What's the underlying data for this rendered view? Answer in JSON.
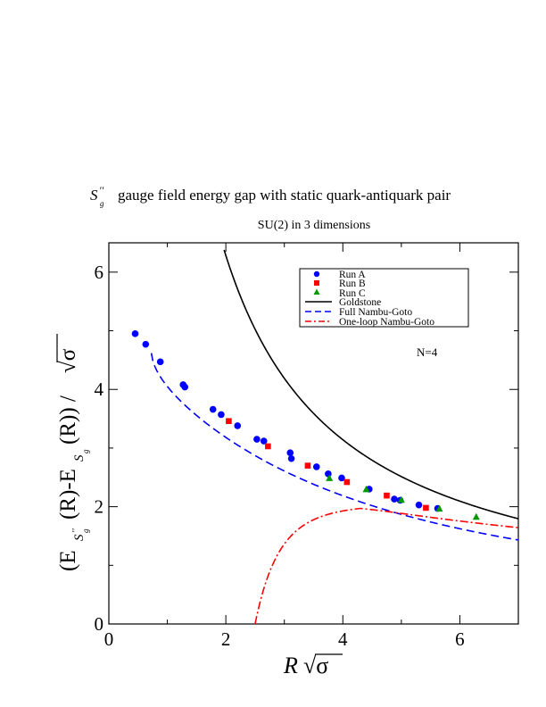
{
  "chart_data": {
    "type": "scatter",
    "title_symbol": "S",
    "title_symbol_primes": "′′",
    "title_symbol_sub": "g",
    "title": "gauge field energy gap with static quark-antiquark pair",
    "subtitle": "SU(2) in 3 dimensions",
    "xlabel_main": "R",
    "xlabel_sqrt": "√σ",
    "ylabel_text": "(E",
    "ylabel_sub1": "S",
    "ylabel_sub1_primes": "′′",
    "ylabel_sub1_g": "g",
    "ylabel_mid": "(R)-E",
    "ylabel_sub2": "S",
    "ylabel_sub2_g": "g",
    "ylabel_end": "(R)) / ",
    "ylabel_sqrt": "√σ",
    "xlim": [
      0,
      7
    ],
    "ylim": [
      0,
      6.5
    ],
    "x_ticks": [
      0,
      2,
      4,
      6
    ],
    "y_ticks": [
      0,
      2,
      4,
      6
    ],
    "annotation": "N=4",
    "legend_position": "top-right",
    "series": [
      {
        "name": "Run A",
        "marker": "circle",
        "color": "#0000ff",
        "points": [
          [
            0.45,
            4.95
          ],
          [
            0.63,
            4.77
          ],
          [
            0.88,
            4.47
          ],
          [
            1.27,
            4.08
          ],
          [
            1.3,
            4.04
          ],
          [
            1.78,
            3.66
          ],
          [
            1.92,
            3.57
          ],
          [
            2.2,
            3.38
          ],
          [
            2.53,
            3.15
          ],
          [
            2.65,
            3.12
          ],
          [
            3.1,
            2.92
          ],
          [
            3.12,
            2.82
          ],
          [
            3.55,
            2.68
          ],
          [
            3.75,
            2.56
          ],
          [
            3.98,
            2.49
          ],
          [
            4.45,
            2.3
          ],
          [
            4.88,
            2.13
          ],
          [
            4.98,
            2.11
          ],
          [
            5.3,
            2.03
          ],
          [
            5.62,
            1.97
          ]
        ]
      },
      {
        "name": "Run B",
        "marker": "square",
        "color": "#ff0000",
        "points": [
          [
            2.05,
            3.46
          ],
          [
            2.72,
            3.03
          ],
          [
            3.4,
            2.7
          ],
          [
            4.07,
            2.42
          ],
          [
            4.75,
            2.19
          ],
          [
            5.42,
            1.98
          ]
        ]
      },
      {
        "name": "Run C",
        "marker": "triangle",
        "color": "#009900",
        "points": [
          [
            3.77,
            2.49
          ],
          [
            4.4,
            2.3
          ],
          [
            5.0,
            2.12
          ],
          [
            5.65,
            1.97
          ],
          [
            6.28,
            1.83
          ]
        ]
      },
      {
        "name": "Goldstone",
        "line": "solid",
        "color": "#000000"
      },
      {
        "name": "Full Nambu-Goto",
        "line": "dashed",
        "color": "#0000ff"
      },
      {
        "name": "One-loop Nambu-Goto",
        "line": "dash-dot",
        "color": "#ff0000"
      }
    ]
  }
}
